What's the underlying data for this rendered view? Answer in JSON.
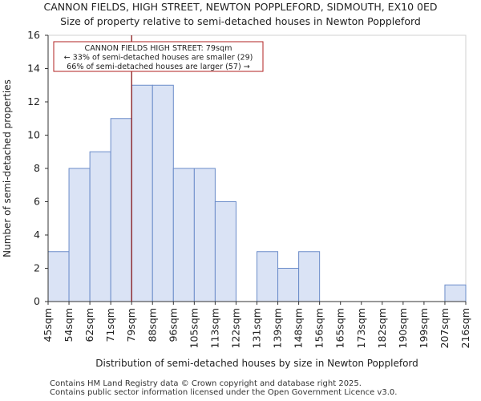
{
  "title_line1": "CANNON FIELDS, HIGH STREET, NEWTON POPPLEFORD, SIDMOUTH, EX10 0ED",
  "title_line2": "Size of property relative to semi-detached houses in Newton Poppleford",
  "footer_line1": "Contains HM Land Registry data © Crown copyright and database right 2025.",
  "footer_line2": "Contains public sector information licensed under the Open Government Licence v3.0.",
  "colors": {
    "bar_fill": "#dae3f5",
    "bar_stroke": "#6b8cc9",
    "marker": "#8b1a1a",
    "annotation_border": "#b22222"
  },
  "chart_data": {
    "type": "bar",
    "title": "Size of property relative to semi-detached houses in Newton Poppleford",
    "xlabel": "Distribution of semi-detached houses by size in Newton Poppleford",
    "ylabel": "Number of semi-detached properties",
    "ylim": [
      0,
      16
    ],
    "yticks": [
      "0",
      "2",
      "4",
      "6",
      "8",
      "10",
      "12",
      "14",
      "16"
    ],
    "bin_edges": [
      "45sqm",
      "54sqm",
      "62sqm",
      "71sqm",
      "79sqm",
      "88sqm",
      "96sqm",
      "105sqm",
      "113sqm",
      "122sqm",
      "131sqm",
      "139sqm",
      "148sqm",
      "156sqm",
      "165sqm",
      "173sqm",
      "182sqm",
      "190sqm",
      "199sqm",
      "207sqm",
      "216sqm"
    ],
    "values": [
      3,
      8,
      9,
      11,
      13,
      13,
      8,
      8,
      6,
      0,
      3,
      2,
      3,
      0,
      0,
      0,
      0,
      0,
      0,
      1
    ],
    "marker": {
      "bin_index": 4,
      "label": "79sqm"
    },
    "annotation": {
      "line1": "CANNON FIELDS HIGH STREET: 79sqm",
      "line2": "← 33% of semi-detached houses are smaller (29)",
      "line3": "66% of semi-detached houses are larger (57) →"
    }
  }
}
